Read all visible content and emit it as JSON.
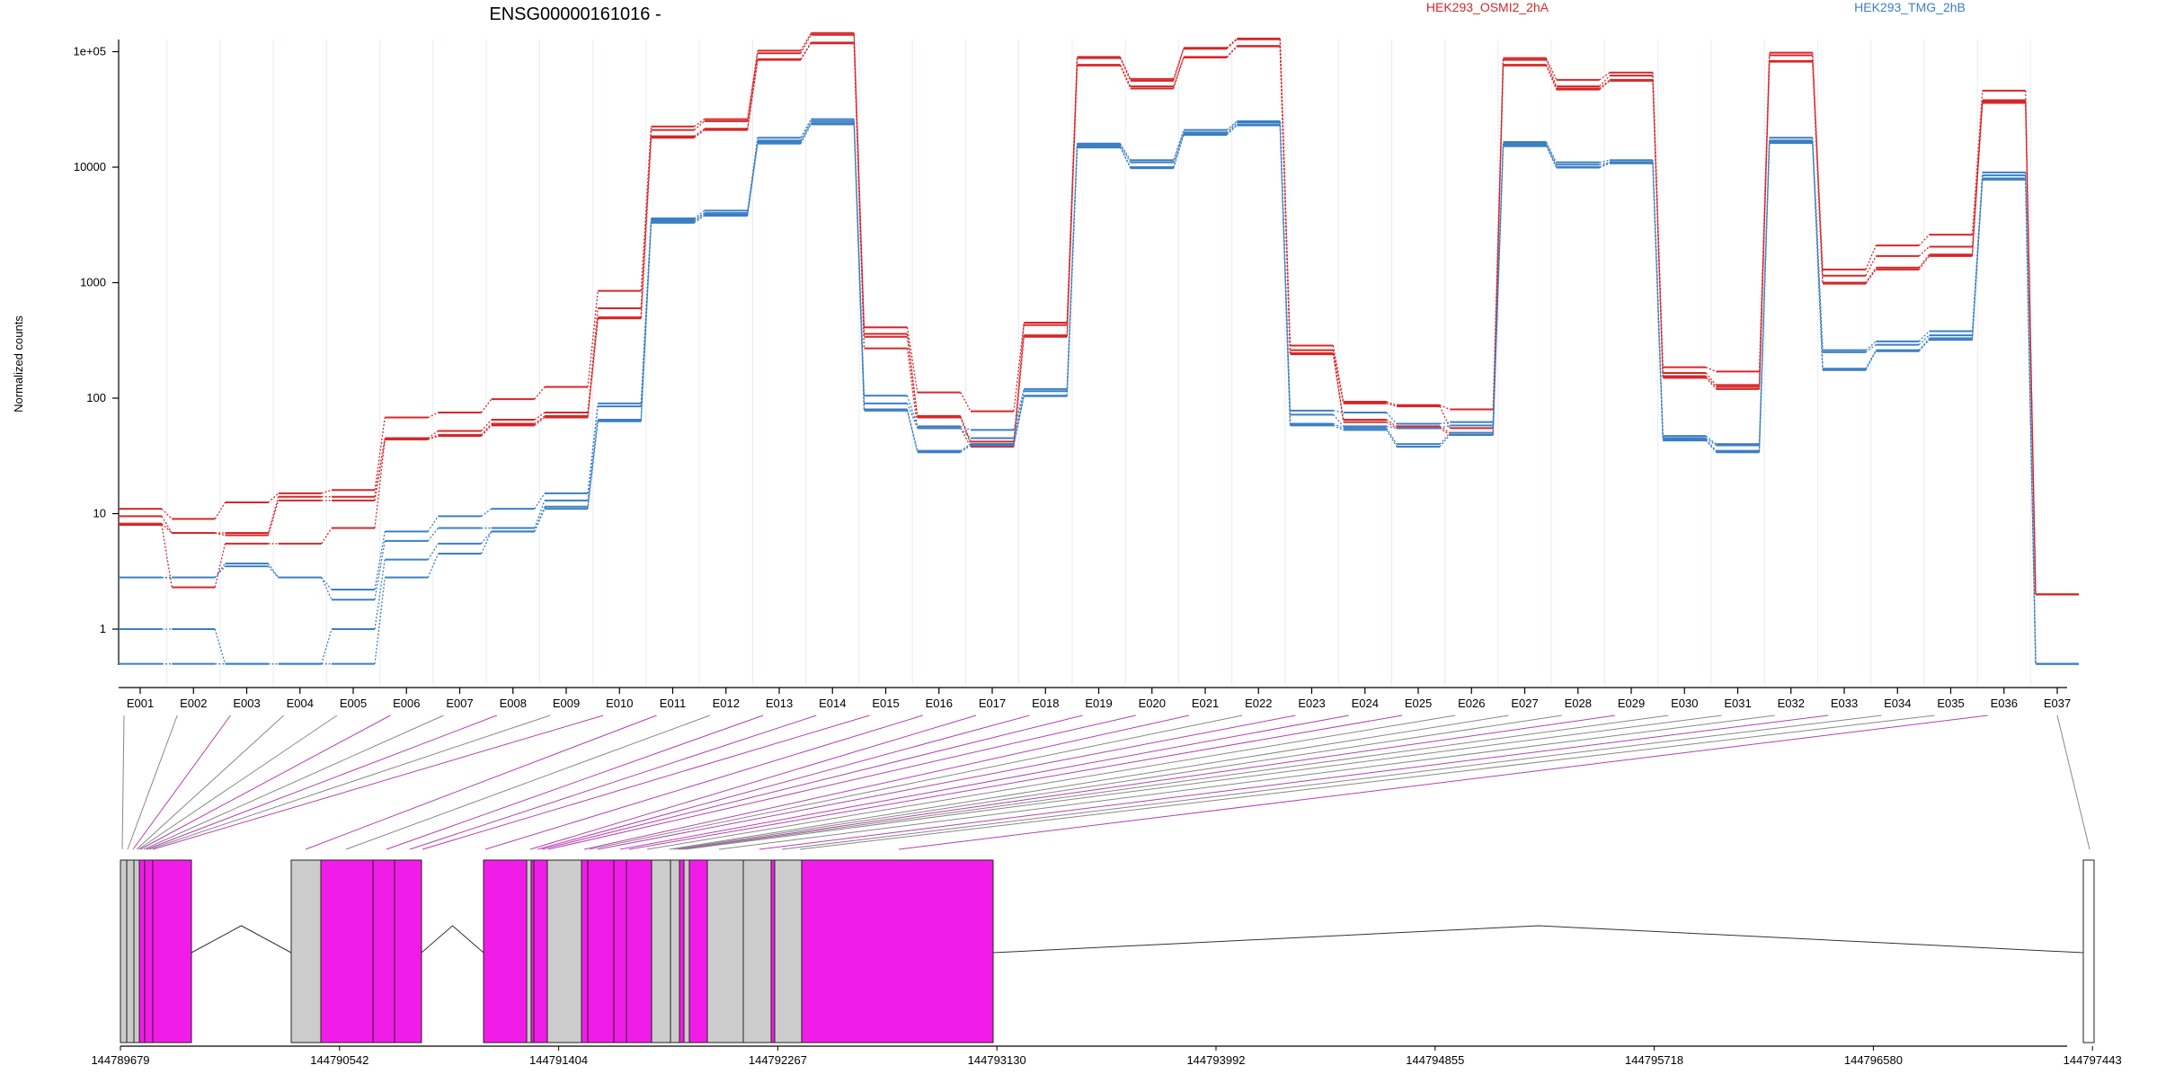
{
  "title": "ENSG00000161016 -",
  "ylabel": "Normalized counts",
  "legend": [
    {
      "label": "HEK293_OSMI2_2hA",
      "color": "#d62728"
    },
    {
      "label": "HEK293_TMG_2hB",
      "color": "#3b7fc4"
    }
  ],
  "colors": {
    "red": "#d62728",
    "blue": "#3b7fc4",
    "exon_grey": "#cccccc",
    "exon_magenta": "#f21ce8",
    "link_grey": "#888888",
    "link_magenta": "#b540b0"
  },
  "chart_data": {
    "type": "line",
    "scale": "log",
    "yticks": [
      {
        "value": 1,
        "label": "1"
      },
      {
        "value": 10,
        "label": "10"
      },
      {
        "value": 100,
        "label": "100"
      },
      {
        "value": 1000,
        "label": "1000"
      },
      {
        "value": 10000,
        "label": "10000"
      },
      {
        "value": 100000,
        "label": "1e+05"
      }
    ],
    "categories": [
      "E001",
      "E002",
      "E003",
      "E004",
      "E005",
      "E006",
      "E007",
      "E008",
      "E009",
      "E010",
      "E011",
      "E012",
      "E013",
      "E014",
      "E015",
      "E016",
      "E017",
      "E018",
      "E019",
      "E020",
      "E021",
      "E022",
      "E023",
      "E024",
      "E025",
      "E026",
      "E027",
      "E028",
      "E029",
      "E030",
      "E031",
      "E032",
      "E033",
      "E034",
      "E035",
      "E036",
      "E037"
    ],
    "series": [
      {
        "group": "red",
        "values": [
          11,
          9,
          12.5,
          15,
          16,
          68,
          75,
          98,
          125,
          850,
          22500,
          26000,
          102000,
          145000,
          410,
          112,
          77,
          450,
          90000,
          58000,
          108000,
          130000,
          285,
          93,
          87,
          80,
          88000,
          57000,
          66000,
          185,
          170,
          98000,
          1300,
          2100,
          2600,
          46000,
          2
        ]
      },
      {
        "group": "red",
        "values": [
          9.5,
          6.8,
          6.8,
          14,
          14,
          45,
          52,
          65,
          75,
          600,
          21000,
          25000,
          97000,
          140000,
          360,
          70,
          42,
          430,
          88000,
          56000,
          106000,
          128000,
          260,
          90,
          85,
          55,
          85000,
          50000,
          62000,
          165,
          130,
          93000,
          1150,
          1700,
          2050,
          38000,
          2
        ]
      },
      {
        "group": "red",
        "values": [
          8.2,
          6.8,
          6.5,
          13,
          13,
          44,
          48,
          60,
          70,
          500,
          18500,
          21500,
          86000,
          120000,
          340,
          68,
          40,
          350,
          77000,
          50000,
          90000,
          112000,
          245,
          65,
          57,
          50,
          77000,
          48000,
          57000,
          155,
          125,
          83000,
          1000,
          1350,
          1750,
          37000,
          2
        ]
      },
      {
        "group": "red",
        "values": [
          8,
          2.3,
          5.5,
          5.5,
          7.5,
          44,
          47,
          58,
          68,
          490,
          18000,
          21000,
          85000,
          118000,
          270,
          55,
          38,
          340,
          76000,
          48000,
          89000,
          111000,
          240,
          62,
          55,
          48,
          76000,
          47000,
          56000,
          150,
          120,
          82000,
          980,
          1300,
          1700,
          36000,
          2
        ]
      },
      {
        "group": "blue",
        "values": [
          2.8,
          2.8,
          3.7,
          2.8,
          2.2,
          7,
          9.5,
          11,
          15,
          90,
          3600,
          4200,
          18000,
          26000,
          105,
          57,
          53,
          120,
          16000,
          11500,
          21000,
          25000,
          78,
          75,
          60,
          62,
          16500,
          11000,
          11500,
          47,
          40,
          18000,
          260,
          310,
          380,
          9000,
          0.5
        ]
      },
      {
        "group": "blue",
        "values": [
          2.8,
          2.8,
          3.5,
          2.8,
          1.8,
          5.8,
          7.5,
          7.5,
          13,
          85,
          3500,
          4000,
          17000,
          25000,
          90,
          55,
          45,
          115,
          15500,
          11000,
          20000,
          24500,
          72,
          57,
          55,
          58,
          16000,
          10500,
          11000,
          45,
          39,
          17000,
          250,
          290,
          350,
          8500,
          0.5
        ]
      },
      {
        "group": "blue",
        "values": [
          1,
          1,
          0.5,
          0.5,
          1,
          4,
          5.5,
          7,
          11.5,
          65,
          3400,
          3900,
          16500,
          24000,
          80,
          35,
          40,
          105,
          15000,
          10000,
          19500,
          23500,
          60,
          55,
          40,
          50,
          15500,
          10000,
          11000,
          44,
          35,
          16500,
          180,
          260,
          330,
          8000,
          0.5
        ]
      },
      {
        "group": "blue",
        "values": [
          0.5,
          0.5,
          0.5,
          0.5,
          0.5,
          2.8,
          4.5,
          7,
          11,
          63,
          3300,
          3800,
          16000,
          23500,
          78,
          34,
          39,
          104,
          14800,
          9800,
          19000,
          23000,
          58,
          53,
          38,
          48,
          15200,
          9900,
          10800,
          43,
          34,
          16200,
          175,
          255,
          320,
          7800,
          0.5
        ]
      }
    ],
    "exon_classes": [
      "g",
      "g",
      "m",
      "g",
      "g",
      "m",
      "g",
      "m",
      "g",
      "m",
      "m",
      "g",
      "m",
      "m",
      "m",
      "m",
      "m",
      "m",
      "m",
      "m",
      "m",
      "g",
      "m",
      "m",
      "m",
      "g",
      "g",
      "g",
      "m",
      "g",
      "g",
      "g",
      "m",
      "g",
      "g",
      "m",
      "g"
    ],
    "gene_axis_ticks": [
      "144789679",
      "144790542",
      "144791404",
      "144792267",
      "144793130",
      "144793992",
      "144794855",
      "144795718",
      "144796580",
      "144797443"
    ]
  }
}
